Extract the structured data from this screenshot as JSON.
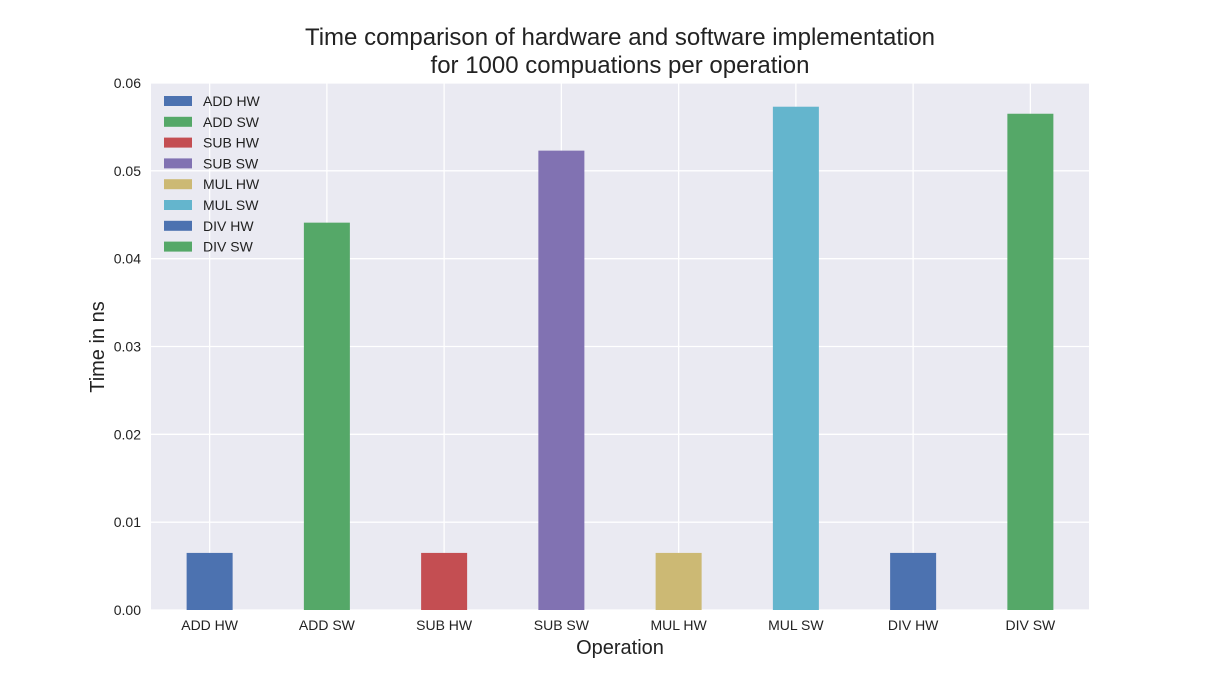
{
  "chart_data": {
    "type": "bar",
    "title_lines": [
      "Time comparison of hardware and software implementation",
      "for 1000 compuations per operation"
    ],
    "xlabel": "Operation",
    "ylabel": "Time in ns",
    "categories": [
      "ADD HW",
      "ADD SW",
      "SUB HW",
      "SUB SW",
      "MUL HW",
      "MUL SW",
      "DIV HW",
      "DIV SW"
    ],
    "values": [
      0.0065,
      0.0441,
      0.0065,
      0.0523,
      0.0065,
      0.0573,
      0.0065,
      0.0565
    ],
    "ylim": [
      0,
      0.06
    ],
    "yticks": [
      "0.00",
      "0.01",
      "0.02",
      "0.03",
      "0.04",
      "0.05",
      "0.06"
    ],
    "colors": [
      "#4c72b0",
      "#55a868",
      "#c44e52",
      "#8172b2",
      "#ccb974",
      "#64b5cd",
      "#4c72b0",
      "#55a868"
    ],
    "legend": {
      "placement": "top-left",
      "entries": [
        "ADD HW",
        "ADD SW",
        "SUB HW",
        "SUB SW",
        "MUL HW",
        "MUL SW",
        "DIV HW",
        "DIV SW"
      ]
    },
    "grid": true,
    "plot_background": "#eaeaf2"
  }
}
